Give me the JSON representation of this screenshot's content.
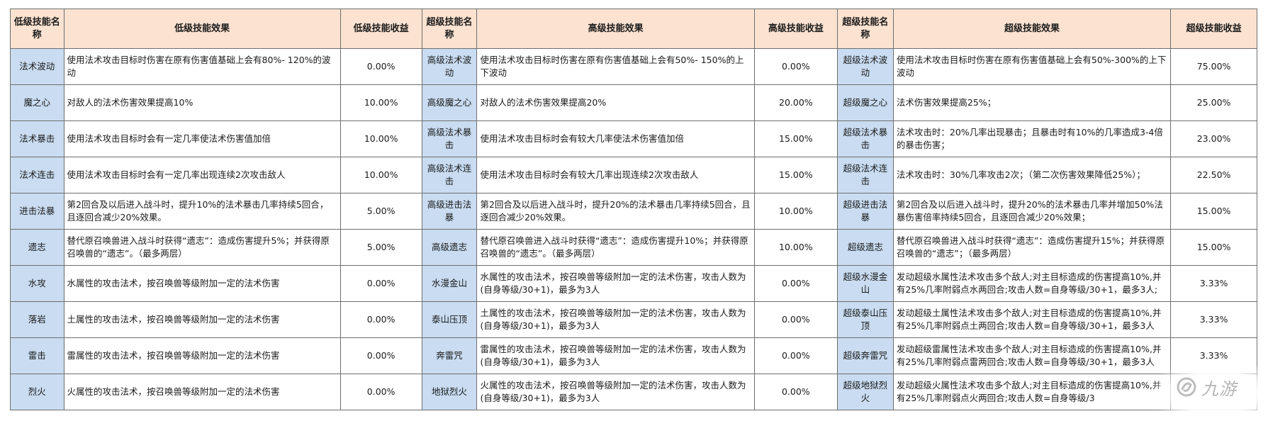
{
  "headers": {
    "low_name": "低级技能名称",
    "low_effect": "低级技能效果",
    "low_gain": "低级技能收益",
    "high_name": "超级技能名称",
    "high_effect": "高级技能效果",
    "high_gain": "高级技能收益",
    "super_name": "超级技能名称",
    "super_effect": "超级技能效果",
    "super_gain": "超级技能收益"
  },
  "rows": [
    {
      "low_name": "法术波动",
      "low_effect": "使用法术攻击目标时伤害在原有伤害值基础上会有80%- 120%的波动",
      "low_gain": "0.00%",
      "high_name": "高级法术波动",
      "high_effect": "使用法术攻击目标时伤害在原有伤害值基础上会有50%- 150%的上下波动",
      "high_gain": "0.00%",
      "super_name": "超级法术波动",
      "super_effect": "使用法术攻击目标时伤害在原有伤害值基础上会有50%-300%的上下波动",
      "super_gain": "75.00%"
    },
    {
      "low_name": "魔之心",
      "low_effect": "对敌人的法术伤害效果提高10%",
      "low_gain": "10.00%",
      "high_name": "高级魔之心",
      "high_effect": "对敌人的法术伤害效果提高20%",
      "high_gain": "20.00%",
      "super_name": "超级魔之心",
      "super_effect": "法术伤害效果提高25%；",
      "super_gain": "25.00%"
    },
    {
      "low_name": "法术暴击",
      "low_effect": "使用法术攻击目标时会有一定几率使法术伤害值加倍",
      "low_gain": "10.00%",
      "high_name": "高级法术暴击",
      "high_effect": "使用法术攻击目标时会有较大几率使法术伤害值加倍",
      "high_gain": "15.00%",
      "super_name": "超级法术暴击",
      "super_effect": "法术攻击时：20%几率出现暴击；且暴击时有10%的几率造成3-4倍的暴击伤害；",
      "super_gain": "23.00%"
    },
    {
      "low_name": "法术连击",
      "low_effect": "使用法术攻击目标时会有一定几率出现连续2次攻击敌人",
      "low_gain": "10.00%",
      "high_name": "高级法术连击",
      "high_effect": "使用法术攻击目标时会有较大几率出现连续2次攻击敌人",
      "high_gain": "15.00%",
      "super_name": "超级法术连击",
      "super_effect": "法术攻击时：30%几率攻击2次；（第二次伤害效果降低25%）；",
      "super_gain": "22.50%"
    },
    {
      "low_name": "进击法暴",
      "low_effect": "第2回合及以后进入战斗时，提升10%的法术暴击几率持续5回合，且逐回合减少20%效果。",
      "low_gain": "5.00%",
      "high_name": "高级进击法暴",
      "high_effect": "第2回合及以后进入战斗时，提升20%的法术暴击几率持续5回合，且逐回合减少20%效果。",
      "high_gain": "10.00%",
      "super_name": "超级进击法暴",
      "super_effect": "第2回合及以后进入战斗时，提升20%的法术暴击几率并增加50%法暴伤害倍率持续5回合，且逐回合减少20%效果；",
      "super_gain": "15.00%"
    },
    {
      "low_name": "遗志",
      "low_effect": "替代原召唤兽进入战斗时获得“遗志”：造成伤害提升5%；并获得原召唤兽的“遗志”。（最多两层）",
      "low_gain": "5.00%",
      "high_name": "高级遗志",
      "high_effect": "替代原召唤兽进入战斗时获得“遗志”：造成伤害提升10%；并获得原召唤兽的“遗志”。（最多两层）",
      "high_gain": "10.00%",
      "super_name": "超级遗志",
      "super_effect": "替代原召唤兽进入战斗时获得“遗志”：造成伤害提升15%；并获得原召唤兽的“遗志”；（最多两层）",
      "super_gain": "15.00%"
    },
    {
      "low_name": "水攻",
      "low_effect": "水属性的攻击法术，按召唤兽等级附加一定的法术伤害",
      "low_gain": "0.00%",
      "high_name": "水漫金山",
      "high_effect": "水属性的攻击法术，按召唤兽等级附加一定的法术伤害，攻击人数为(自身等级/30+1)，最多为3人",
      "high_gain": "0.00%",
      "super_name": "超级水漫金山",
      "super_effect": "发动超级水属性法术攻击多个敌人;对主目标造成的伤害提高10%,并有25%几率附弱点水两回合;攻击人数=自身等级/30+1，最多3人;",
      "super_gain": "3.33%"
    },
    {
      "low_name": "落岩",
      "low_effect": "土属性的攻击法术，按召唤兽等级附加一定的法术伤害",
      "low_gain": "0.00%",
      "high_name": "泰山压顶",
      "high_effect": "土属性的攻击法术，按召唤兽等级附加一定的法术伤害，攻击人数为(自身等级/30+1)，最多为3人",
      "high_gain": "0.00%",
      "super_name": "超级泰山压顶",
      "super_effect": "发动超级土属性法术攻击多个敌人;对主目标造成的伤害提高10%,并有25%几率附弱点土两回合;攻击人数=自身等级/30+1，最多3人",
      "super_gain": "3.33%"
    },
    {
      "low_name": "雷击",
      "low_effect": "雷属性的攻击法术，按召唤兽等级附加一定的法术伤害",
      "low_gain": "0.00%",
      "high_name": "奔雷咒",
      "high_effect": "雷属性的攻击法术，按召唤兽等级附加一定的法术伤害，攻击人数为(自身等级/30+1)，最多为3人",
      "high_gain": "0.00%",
      "super_name": "超级奔雷咒",
      "super_effect": "发动超级雷属性法术攻击多个敌人;对主目标造成的伤害提高10%,并有25%几率附弱点雷两回合;攻击人数=自身等级/30+1，最多3人",
      "super_gain": "3.33%"
    },
    {
      "low_name": "烈火",
      "low_effect": "火属性的攻击法术，按召唤兽等级附加一定的法术伤害",
      "low_gain": "0.00%",
      "high_name": "地狱烈火",
      "high_effect": "火属性的攻击法术，按召唤兽等级附加一定的法术伤害，攻击人数为(自身等级/30+1)，最多为3人",
      "high_gain": "0.00%",
      "super_name": "超级地狱烈火",
      "super_effect": "发动超级火属性法术攻击多个敌人;对主目标造成的伤害提高10%,并有25%几率附弱点火两回合;攻击人数=自身等级/3",
      "super_gain": ""
    }
  ],
  "watermark": {
    "text": "九游",
    "icon": "jiuyou-logo-icon"
  }
}
